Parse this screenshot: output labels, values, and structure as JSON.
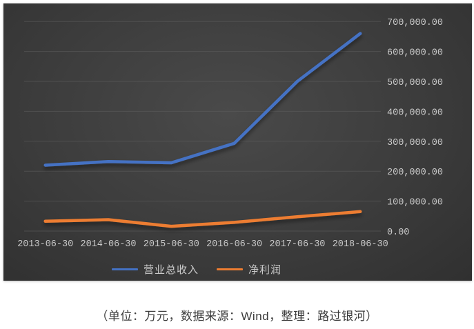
{
  "chart_data": {
    "type": "line",
    "title": "",
    "unit_note": "万元",
    "categories": [
      "2013-06-30",
      "2014-06-30",
      "2015-06-30",
      "2016-06-30",
      "2017-06-30",
      "2018-06-30"
    ],
    "series": [
      {
        "name": "营业总收入",
        "color": "#4472c4",
        "values": [
          220000,
          232000,
          228000,
          293000,
          500000,
          660000
        ]
      },
      {
        "name": "净利润",
        "color": "#ed7d31",
        "values": [
          33000,
          38000,
          16000,
          29000,
          48000,
          65000
        ]
      }
    ],
    "y_axis": {
      "side": "right",
      "min": 0,
      "max": 700000,
      "tick_step": 100000,
      "tick_labels": [
        "0.00",
        "100,000.00",
        "200,000.00",
        "300,000.00",
        "400,000.00",
        "500,000.00",
        "600,000.00",
        "700,000.00"
      ]
    },
    "grid": "horizontal",
    "legend_position": "bottom",
    "theme": {
      "panel_bg_center": "#4a4a4a",
      "panel_bg_edge": "#303030",
      "grid_color": "#616161",
      "axis_text_color": "#c9c9c9",
      "legend_text_color": "#cbcbcb"
    }
  },
  "caption": {
    "text": "（单位：万元，数据来源：Wind，整理：路过银河）"
  }
}
